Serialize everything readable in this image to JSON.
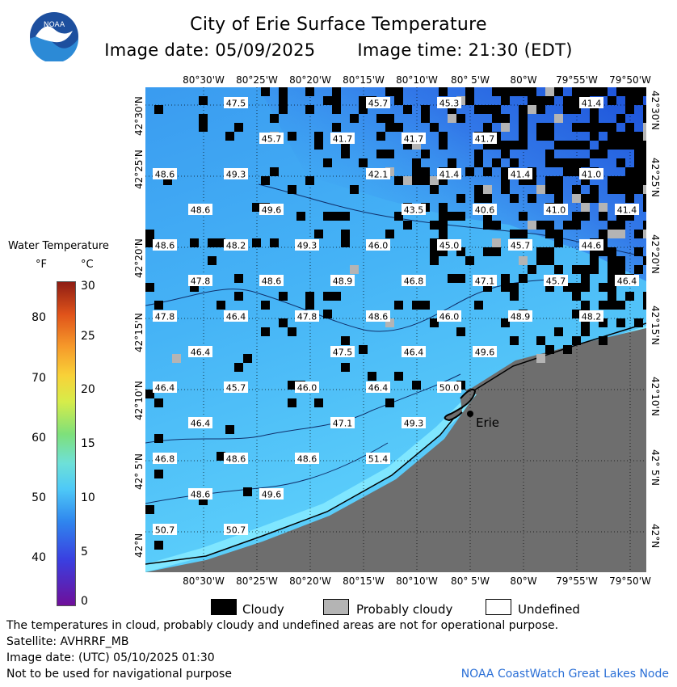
{
  "header": {
    "title": "City of Erie Surface Temperature",
    "image_date": "Image date: 05/09/2025",
    "image_time": "Image time: 21:30 (EDT)"
  },
  "logo": {
    "text": "NOAA"
  },
  "axes": {
    "lon_labels": [
      "80°30'W",
      "80°25'W",
      "80°20'W",
      "80°15'W",
      "80°10'W",
      "80° 5'W",
      "80°W",
      "79°55'W",
      "79°50'W"
    ],
    "lat_labels": [
      "42°30'N",
      "42°25'N",
      "42°20'N",
      "42°15'N",
      "42°10'N",
      "42° 5'N",
      "42°N"
    ]
  },
  "legend": {
    "title": "Water Temperature",
    "unit_f": "°F",
    "unit_c": "°C",
    "f_ticks": [
      "80",
      "70",
      "60",
      "50",
      "40"
    ],
    "c_ticks": [
      "30",
      "25",
      "20",
      "15",
      "10",
      "5",
      "0"
    ]
  },
  "key": {
    "cloudy": "Cloudy",
    "probably_cloudy": "Probably cloudy",
    "undefined": "Undefined",
    "cloudy_color": "#000000",
    "probably_cloudy_color": "#b4b4b4",
    "undefined_color": "#ffffff"
  },
  "map": {
    "city_label": "Erie",
    "land_color": "#6e6e6e",
    "temperature_labels": [
      "47.5",
      "45.7",
      "45.3",
      "41.4",
      "45.7",
      "41.7",
      "41.7",
      "41.7",
      "48.6",
      "49.3",
      "42.1",
      "41.4",
      "41.4",
      "41.0",
      "48.6",
      "49.6",
      "43.5",
      "40.6",
      "41.0",
      "41.4",
      "48.6",
      "48.2",
      "49.3",
      "46.0",
      "45.0",
      "45.7",
      "44.6",
      "47.8",
      "48.6",
      "48.9",
      "46.8",
      "47.1",
      "45.7",
      "46.4",
      "47.8",
      "46.4",
      "47.8",
      "48.6",
      "46.0",
      "48.9",
      "48.2",
      "46.4",
      "47.5",
      "46.4",
      "49.6",
      "46.4",
      "45.7",
      "46.0",
      "46.4",
      "50.0",
      "46.4",
      "47.1",
      "49.3",
      "46.8",
      "48.6",
      "48.6",
      "51.4",
      "48.6",
      "49.6",
      "50.7",
      "50.7"
    ]
  },
  "notes": {
    "line1": "The temperatures in cloud, probably cloudy and undefined areas are not for operational purpose.",
    "line2": "Satellite: AVHRRF_MB",
    "line3": "Image date: (UTC) 05/10/2025  01:30",
    "line4": "Not to be used for navigational purpose",
    "credit": "NOAA CoastWatch Great Lakes Node"
  }
}
